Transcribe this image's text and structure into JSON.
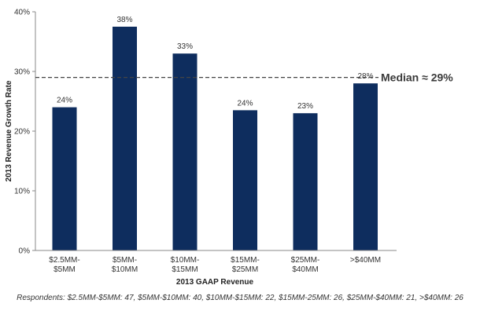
{
  "chart_data": {
    "type": "bar",
    "categories": [
      [
        "$2.5MM-",
        "$5MM"
      ],
      [
        "$5MM-",
        "$10MM"
      ],
      [
        "$10MM-",
        "$15MM"
      ],
      [
        "$15MM-",
        "$25MM"
      ],
      [
        "$25MM-",
        "$40MM"
      ],
      [
        ">$40MM"
      ]
    ],
    "values": [
      24,
      37.5,
      33,
      23.5,
      23,
      28
    ],
    "data_labels": [
      "24%",
      "38%",
      "33%",
      "24%",
      "23%",
      "28%"
    ],
    "xlabel": "2013 GAAP  Revenue",
    "ylabel": "2013 Revenue  Growth Rate",
    "ylim": [
      0,
      40
    ],
    "yticks": [
      0,
      10,
      20,
      30,
      40
    ],
    "ytick_labels": [
      "0%",
      "10%",
      "20%",
      "30%",
      "40%"
    ],
    "grid": false,
    "bar_color": "#0e2d5e",
    "reference_line": {
      "value": 29,
      "label": "Median ≈ 29%",
      "style": "dashed",
      "color": "#444444"
    }
  },
  "footnote": "Respondents: $2.5MM-$5MM: 47, $5MM-$10MM: 40, $10MM-$15MM: 22, $15MM-25MM: 26, $25MM-$40MM: 21, >$40MM: 26"
}
